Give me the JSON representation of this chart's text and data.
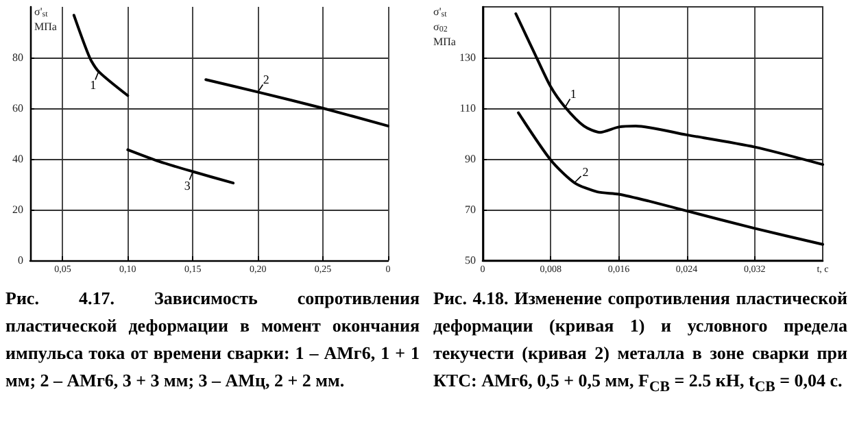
{
  "chart_data": [
    {
      "type": "line",
      "ylabel": "σ'$_{st}$ МПа",
      "xlim": [
        0.025,
        0.3
      ],
      "xticks": [
        {
          "value": 0.05,
          "label": "0,05"
        },
        {
          "value": 0.1,
          "label": "0,10"
        },
        {
          "value": 0.15,
          "label": "0,15"
        },
        {
          "value": 0.2,
          "label": "0,20"
        },
        {
          "value": 0.25,
          "label": "0,25"
        },
        {
          "value": 0.3,
          "label": "0"
        }
      ],
      "ylim": [
        0,
        100
      ],
      "yticks": [
        0,
        20,
        40,
        60,
        80
      ],
      "grid": true,
      "marker": "none",
      "line_style": "solid",
      "series": [
        {
          "color": "#000000",
          "x": [
            0.0586,
            0.0707,
            0.0776,
            0.1
          ],
          "values": [
            96.7,
            80,
            74.5,
            65
          ]
        },
        {
          "color": "#000000",
          "x": [
            0.16,
            0.2,
            0.25,
            0.3
          ],
          "values": [
            71.3,
            66.4,
            60,
            53
          ]
        },
        {
          "color": "#000000",
          "x": [
            0.1,
            0.124,
            0.15,
            0.181
          ],
          "values": [
            43.6,
            39,
            35,
            30.5
          ]
        }
      ],
      "annotations": [
        {
          "text": "1",
          "x": 0.0776,
          "y": 74.5
        },
        {
          "text": "2",
          "x": 0.2,
          "y": 66.4
        },
        {
          "text": "3",
          "x": 0.15,
          "y": 35
        },
        "Рис. 4.17. Зависимость сопротивления пластической деформации в момент окончания импульса тока от времени сварки: 1 – АМг6, 1 + 1 мм; 2 – АМг6, 3 + 3 мм; 3 – АМц, 2 + 2 мм."
      ]
    },
    {
      "type": "line",
      "ylabel": "σ'$_{st}$ σ$_{02}$ МПа",
      "xlabel": "t, c",
      "xlim": [
        0,
        0.04
      ],
      "xticks": [
        {
          "value": 0,
          "label": "0"
        },
        {
          "value": 0.008,
          "label": "0,008"
        },
        {
          "value": 0.016,
          "label": "0,016"
        },
        {
          "value": 0.024,
          "label": "0,024"
        },
        {
          "value": 0.032,
          "label": "0,032"
        }
      ],
      "ylim": [
        50,
        150
      ],
      "yticks": [
        50,
        70,
        90,
        110,
        130
      ],
      "grid": true,
      "marker": "none",
      "line_style": "solid",
      "series": [
        {
          "color": "#000000",
          "x": [
            0.0039,
            0.0062,
            0.008,
            0.0097,
            0.0119,
            0.0138,
            0.016,
            0.018,
            0.024,
            0.032,
            0.04
          ],
          "values": [
            147.3,
            131,
            118.5,
            110.4,
            103,
            100.5,
            102.6,
            103,
            99.5,
            94.7,
            87.8
          ]
        },
        {
          "color": "#000000",
          "x": [
            0.0042,
            0.008,
            0.0108,
            0.0135,
            0.016,
            0.0195,
            0.024,
            0.032,
            0.04
          ],
          "values": [
            108.2,
            89.6,
            80.6,
            77,
            76.1,
            73.4,
            69.5,
            62.6,
            56.3
          ]
        }
      ],
      "annotations": [
        {
          "text": "1",
          "x": 0.0097,
          "y": 110.4
        },
        {
          "text": "2",
          "x": 0.0108,
          "y": 80.6
        },
        "Рис. 4.18. Изменение сопротивления пластической деформации (кривая 1) и условного предела текучести (кривая 2) металла в зоне сварки при КТС: АМг6, 0,5 + 0,5 мм, F$_{СВ}$ = 2.5 кН, t$_{СВ}$ = 0,04 с."
      ]
    }
  ]
}
